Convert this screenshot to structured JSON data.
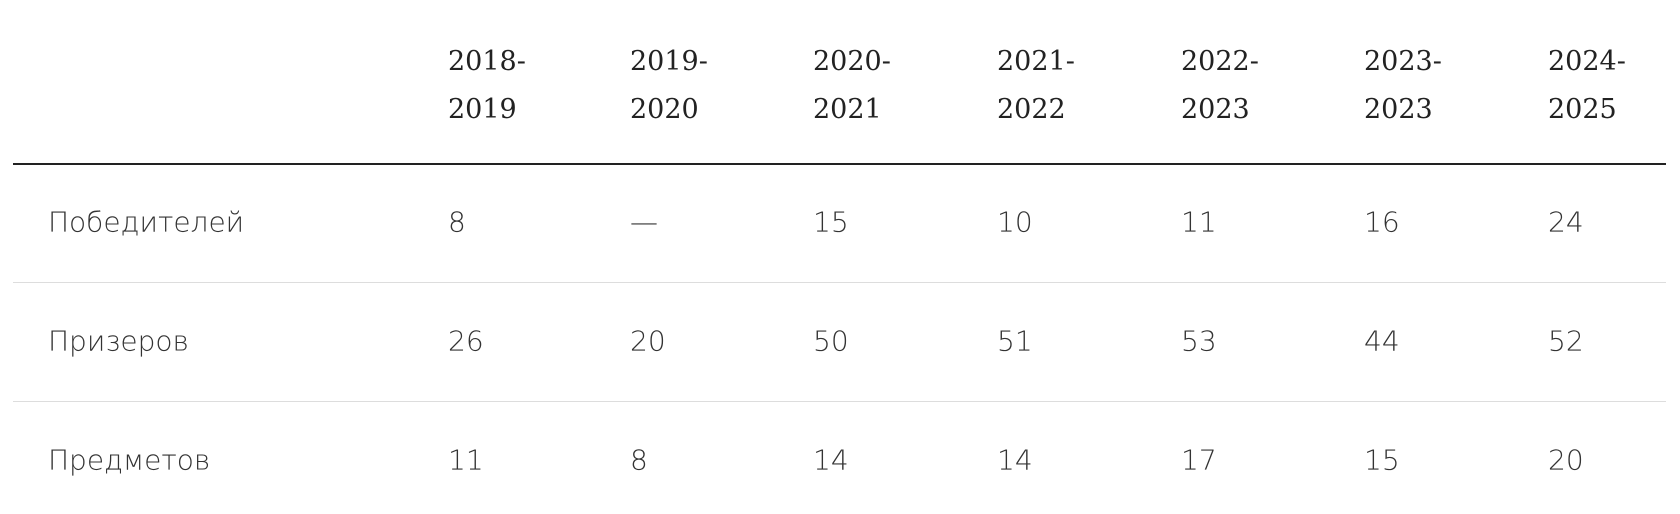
{
  "table": {
    "columns": [
      "2018-2019",
      "2019-2020",
      "2020-2021",
      "2021-2022",
      "2022-2023",
      "2023-2023",
      "2024-2025"
    ],
    "rows": [
      {
        "label": "Победителей",
        "values": [
          8,
          "—",
          15,
          10,
          11,
          16,
          24
        ]
      },
      {
        "label": "Призеров",
        "values": [
          26,
          20,
          50,
          51,
          53,
          44,
          52
        ]
      },
      {
        "label": "Предметов",
        "values": [
          11,
          8,
          14,
          14,
          17,
          15,
          20
        ]
      }
    ]
  }
}
